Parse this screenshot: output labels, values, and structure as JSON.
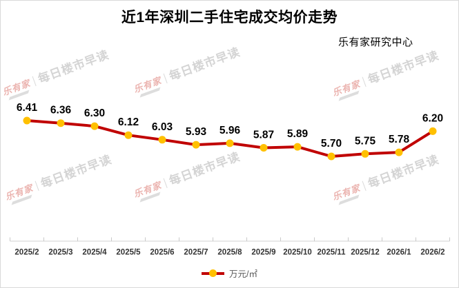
{
  "header": {
    "title": "近1年深圳二手住宅成交均价走势",
    "source": "乐有家研究中心"
  },
  "watermark": {
    "logo": "乐有家",
    "text": "每日楼市早读"
  },
  "legend": {
    "label": "万元/㎡"
  },
  "chart_data": {
    "type": "line",
    "title": "近1年深圳二手住宅成交均价走势",
    "categories": [
      "2025/2",
      "2025/3",
      "2025/4",
      "2025/5",
      "2025/6",
      "2025/7",
      "2025/8",
      "2025/9",
      "2025/10",
      "2025/11",
      "2025/12",
      "2026/1",
      "2026/2"
    ],
    "series": [
      {
        "name": "万元/㎡",
        "values": [
          6.41,
          6.36,
          6.3,
          6.12,
          6.03,
          5.93,
          5.96,
          5.87,
          5.89,
          5.7,
          5.75,
          5.78,
          6.2
        ]
      }
    ],
    "xlabel": "",
    "ylabel": "万元/㎡",
    "ylim": [
      5.5,
      6.6
    ],
    "grid": false,
    "legend_position": "bottom",
    "colors": {
      "line": "#C00000",
      "marker": "#FFC000",
      "data_label": "#000000",
      "axis_line": "#D9D9D9",
      "axis_tick": "#C9C9C9",
      "axis_label": "#333333"
    }
  }
}
